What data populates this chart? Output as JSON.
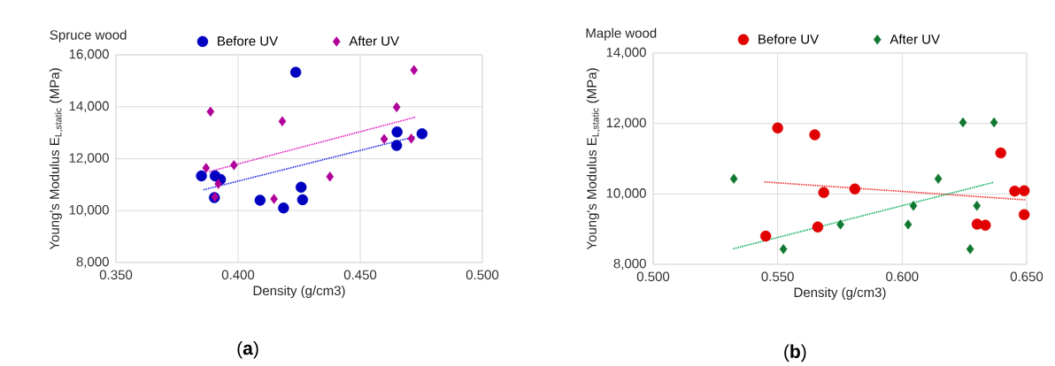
{
  "chart_data": [
    {
      "type": "scatter",
      "title": "Spruce  wood",
      "xlabel": "Density (g/cm3)",
      "ylabel": "Young's Modulus E$_{L,static}$ (MPa)",
      "xlim": [
        0.35,
        0.5
      ],
      "ylim": [
        8000,
        16000
      ],
      "xticks": [
        {
          "value": 0.35,
          "label": "0.350"
        },
        {
          "value": 0.4,
          "label": "0.400"
        },
        {
          "value": 0.45,
          "label": "0.450"
        },
        {
          "value": 0.5,
          "label": "0.500"
        }
      ],
      "yticks": [
        {
          "value": 8000,
          "label": "8,000"
        },
        {
          "value": 10000,
          "label": "10,000"
        },
        {
          "value": 12000,
          "label": "12,000"
        },
        {
          "value": 14000,
          "label": "14,000"
        },
        {
          "value": 16000,
          "label": "16,000"
        }
      ],
      "grid": true,
      "legend": "top",
      "annotations": [
        "(**a**)"
      ],
      "series": [
        {
          "name": "Before UV",
          "color": "#0000c0",
          "marker": "circle",
          "x": [
            0.4236,
            0.385,
            0.3906,
            0.3928,
            0.3903,
            0.409,
            0.4186,
            0.4258,
            0.4264,
            0.4651,
            0.4649,
            0.4753
          ],
          "values": [
            15330,
            11340,
            11340,
            11200,
            10500,
            10400,
            10100,
            10900,
            10420,
            13030,
            12510,
            12960
          ]
        },
        {
          "name": "After UV",
          "color": "#b0009a",
          "marker": "diamond",
          "x": [
            0.3887,
            0.4181,
            0.472,
            0.4649,
            0.4598,
            0.4709,
            0.3869,
            0.3983,
            0.3919,
            0.3905,
            0.4147,
            0.4376
          ],
          "values": [
            13810,
            13440,
            15410,
            13980,
            12760,
            12770,
            11640,
            11750,
            11030,
            10530,
            10450,
            11310
          ]
        },
        {
          "type": "line",
          "color": "#2030e0",
          "marker": "none",
          "line_style": "dotted",
          "x": [
            0.3858,
            0.4725
          ],
          "values": [
            10800,
            12850
          ]
        },
        {
          "type": "line",
          "color": "#e020c0",
          "marker": "none",
          "line_style": "dotted",
          "x": [
            0.3881,
            0.4726
          ],
          "values": [
            11500,
            13600
          ]
        }
      ]
    },
    {
      "type": "scatter",
      "title": "Maple wood",
      "xlabel": "Density (g/cm3)",
      "ylabel": "Young's Modulus E$_{L,static}$ (MPa)",
      "xlim": [
        0.5,
        0.65
      ],
      "ylim": [
        8000,
        14000
      ],
      "xticks": [
        {
          "value": 0.5,
          "label": "0.500"
        },
        {
          "value": 0.55,
          "label": "0.550"
        },
        {
          "value": 0.6,
          "label": "0.600"
        },
        {
          "value": 0.65,
          "label": "0.650"
        }
      ],
      "yticks": [
        {
          "value": 8000,
          "label": "8,000"
        },
        {
          "value": 10000,
          "label": "10,000"
        },
        {
          "value": 12000,
          "label": "12,000"
        },
        {
          "value": 14000,
          "label": "14,000"
        }
      ],
      "grid": true,
      "legend": "top",
      "annotations": [
        "(**b**)"
      ],
      "series": [
        {
          "name": "Before UV",
          "color": "#e00000",
          "marker": "circle",
          "x": [
            0.55,
            0.5649,
            0.6396,
            0.5685,
            0.581,
            0.5452,
            0.5661,
            0.6301,
            0.6334,
            0.6452,
            0.649,
            0.649
          ],
          "values": [
            11870,
            11680,
            11160,
            10040,
            10140,
            8800,
            9060,
            9140,
            9110,
            10080,
            10090,
            9410
          ]
        },
        {
          "name": "After UV",
          "color": "#107830",
          "marker": "diamond",
          "x": [
            0.5324,
            0.5523,
            0.5752,
            0.6024,
            0.6045,
            0.6145,
            0.6244,
            0.6369,
            0.63,
            0.6273
          ],
          "values": [
            10430,
            8430,
            9130,
            9130,
            9660,
            10430,
            12030,
            12030,
            9660,
            8430
          ]
        },
        {
          "type": "line",
          "color": "#f03030",
          "marker": "none",
          "line_style": "dotted",
          "x": [
            0.5446,
            0.6495
          ],
          "values": [
            10340,
            9830
          ]
        },
        {
          "type": "line",
          "color": "#10b060",
          "marker": "none",
          "line_style": "dotted",
          "x": [
            0.5321,
            0.6368
          ],
          "values": [
            8440,
            10330
          ]
        }
      ]
    }
  ]
}
